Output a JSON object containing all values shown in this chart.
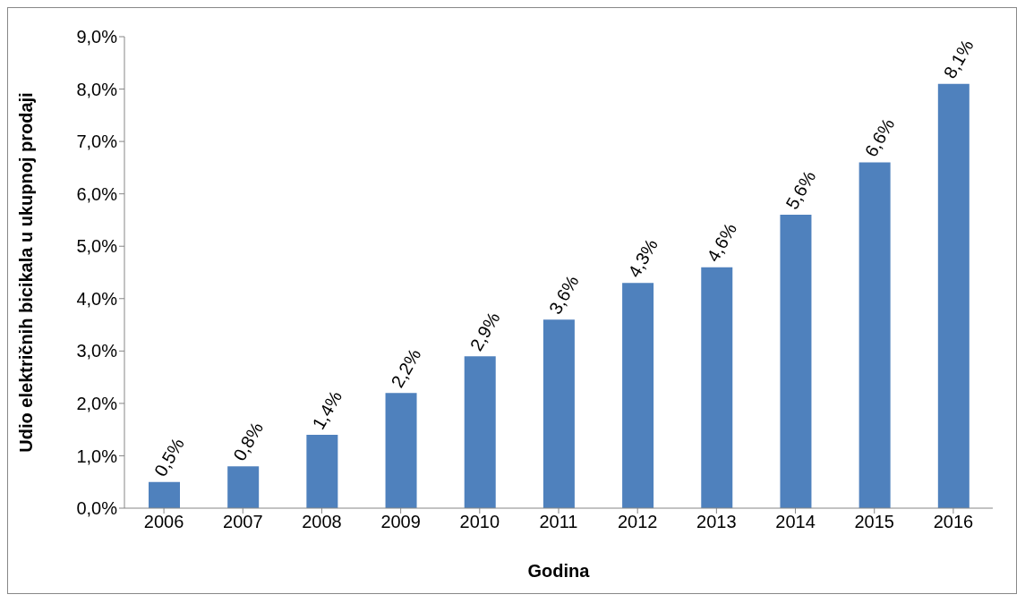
{
  "chart_data": {
    "type": "bar",
    "xlabel": "Godina",
    "ylabel": "Udio električnih bicikala u ukupnoj prodaji",
    "categories": [
      "2006",
      "2007",
      "2008",
      "2009",
      "2010",
      "2011",
      "2012",
      "2013",
      "2014",
      "2015",
      "2016"
    ],
    "values": [
      0.5,
      0.8,
      1.4,
      2.2,
      2.9,
      3.6,
      4.3,
      4.6,
      5.6,
      6.6,
      8.1
    ],
    "value_labels": [
      "0,5%",
      "0,8%",
      "1,4%",
      "2,2%",
      "2,9%",
      "3,6%",
      "4,3%",
      "4,6%",
      "5,6%",
      "6,6%",
      "8,1%"
    ],
    "color": "#4f81bd",
    "ylim": [
      0,
      9
    ],
    "yticks": [
      {
        "value": 0,
        "label": "0,0%"
      },
      {
        "value": 1,
        "label": "1,0%"
      },
      {
        "value": 2,
        "label": "2,0%"
      },
      {
        "value": 3,
        "label": "3,0%"
      },
      {
        "value": 4,
        "label": "4,0%"
      },
      {
        "value": 5,
        "label": "5,0%"
      },
      {
        "value": 6,
        "label": "6,0%"
      },
      {
        "value": 7,
        "label": "7,0%"
      },
      {
        "value": 8,
        "label": "8,0%"
      },
      {
        "value": 9,
        "label": "9,0%"
      }
    ],
    "grid": false,
    "legend": false
  }
}
